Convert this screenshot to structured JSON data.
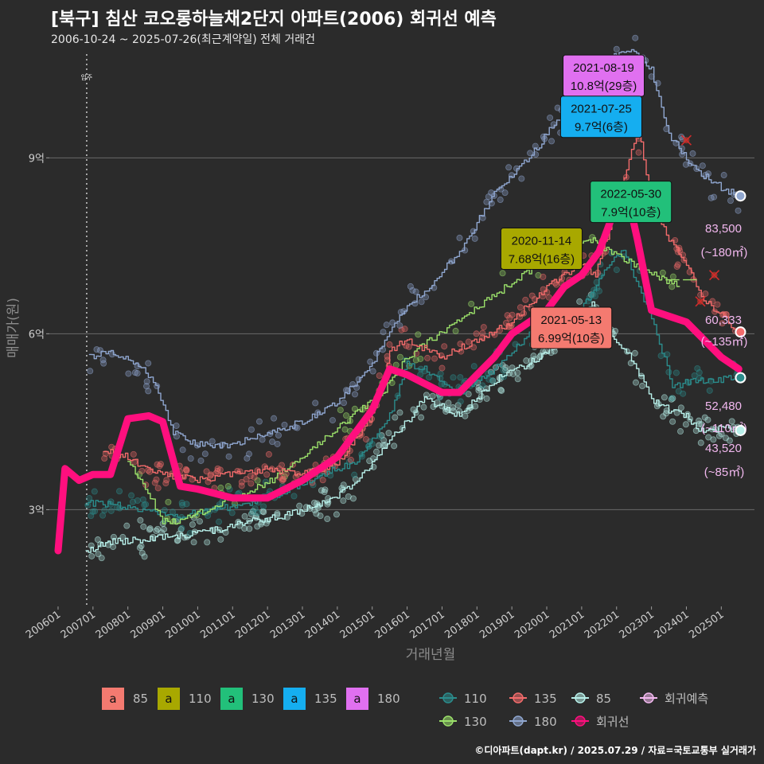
{
  "chart_data": {
    "type": "line",
    "title": "[북구] 침산 코오롱하늘채2단지 아파트(2006) 회귀선 예측",
    "subtitle": "2006-10-24 ~ 2025-07-26(최근계약일) 전체 거래건",
    "caption": "©디아파트(dapt.kr) / 2025.07.29 / 자료=국토교통부 실거래가",
    "xlabel": "거래년월",
    "ylabel": "매매가(원)",
    "xlim": [
      2005.75,
      2025.95
    ],
    "ylim": [
      1.35,
      10.85
    ],
    "y_ticks": [
      {
        "value": 3,
        "label": "3억"
      },
      {
        "value": 6,
        "label": "6억"
      },
      {
        "value": 9,
        "label": "9억"
      }
    ],
    "x_ticks": [
      {
        "value": 2006.0,
        "label": "200601"
      },
      {
        "value": 2007.0,
        "label": "200701"
      },
      {
        "value": 2008.0,
        "label": "200801"
      },
      {
        "value": 2009.0,
        "label": "200901"
      },
      {
        "value": 2010.0,
        "label": "201001"
      },
      {
        "value": 2011.0,
        "label": "201101"
      },
      {
        "value": 2012.0,
        "label": "201201"
      },
      {
        "value": 2013.0,
        "label": "201301"
      },
      {
        "value": 2014.0,
        "label": "201401"
      },
      {
        "value": 2015.0,
        "label": "201501"
      },
      {
        "value": 2016.0,
        "label": "201601"
      },
      {
        "value": 2017.0,
        "label": "201701"
      },
      {
        "value": 2018.0,
        "label": "201801"
      },
      {
        "value": 2019.0,
        "label": "201901"
      },
      {
        "value": 2020.0,
        "label": "202001"
      },
      {
        "value": 2021.0,
        "label": "202101"
      },
      {
        "value": 2022.0,
        "label": "202201"
      },
      {
        "value": 2023.0,
        "label": "202301"
      },
      {
        "value": 2024.0,
        "label": "202401"
      },
      {
        "value": 2025.0,
        "label": "202501"
      }
    ],
    "grid": true,
    "legend_position": "bottom",
    "move_in": {
      "x": 2006.82,
      "label": "입주"
    },
    "series": [
      {
        "name": "85",
        "color": "#b8f0ea",
        "points": [
          [
            2006.8,
            2.3
          ],
          [
            2007.5,
            2.45
          ],
          [
            2008.5,
            2.5
          ],
          [
            2009.5,
            2.55
          ],
          [
            2010.5,
            2.65
          ],
          [
            2011.5,
            2.8
          ],
          [
            2012.5,
            2.9
          ],
          [
            2013.5,
            3.1
          ],
          [
            2014.5,
            3.4
          ],
          [
            2015.5,
            4.2
          ],
          [
            2016.0,
            4.5
          ],
          [
            2016.5,
            4.9
          ],
          [
            2017.5,
            4.6
          ],
          [
            2018.5,
            5.2
          ],
          [
            2019.5,
            5.5
          ],
          [
            2020.5,
            5.9
          ],
          [
            2021.3,
            6.5
          ],
          [
            2021.6,
            6.2
          ],
          [
            2022.0,
            5.9
          ],
          [
            2022.5,
            5.5
          ],
          [
            2023.0,
            4.9
          ],
          [
            2023.5,
            4.7
          ],
          [
            2024.0,
            4.6
          ],
          [
            2024.5,
            4.3
          ],
          [
            2025.0,
            4.4
          ],
          [
            2025.5,
            4.35
          ]
        ]
      },
      {
        "name": "110",
        "color": "#2b8c8c",
        "points": [
          [
            2006.8,
            3.1
          ],
          [
            2007.5,
            3.1
          ],
          [
            2008.5,
            3.0
          ],
          [
            2009.5,
            2.9
          ],
          [
            2010.5,
            3.0
          ],
          [
            2011.5,
            3.1
          ],
          [
            2012.5,
            3.3
          ],
          [
            2013.5,
            3.6
          ],
          [
            2014.5,
            3.8
          ],
          [
            2015.5,
            4.6
          ],
          [
            2016.0,
            5.5
          ],
          [
            2016.5,
            5.4
          ],
          [
            2017.5,
            5.0
          ],
          [
            2018.5,
            5.4
          ],
          [
            2019.5,
            6.0
          ],
          [
            2020.5,
            6.1
          ],
          [
            2021.2,
            6.6
          ],
          [
            2021.8,
            7.2
          ],
          [
            2022.2,
            7.4
          ],
          [
            2023.0,
            6.3
          ],
          [
            2023.6,
            5.1
          ],
          [
            2024.2,
            5.2
          ],
          [
            2025.5,
            5.25
          ]
        ]
      },
      {
        "name": "130",
        "color": "#9be06a",
        "points": [
          [
            2008.0,
            3.85
          ],
          [
            2008.5,
            3.4
          ],
          [
            2009.0,
            2.8
          ],
          [
            2009.5,
            2.8
          ],
          [
            2012.0,
            3.45
          ],
          [
            2015.3,
            5.0
          ],
          [
            2016.0,
            5.6
          ],
          [
            2020.5,
            7.5
          ],
          [
            2021.4,
            7.6
          ],
          [
            2021.5,
            7.5
          ],
          [
            2023.8,
            6.8
          ]
        ]
      },
      {
        "name": "135",
        "color": "#f26b6b",
        "points": [
          [
            2007.3,
            4.0
          ],
          [
            2008.0,
            3.9
          ],
          [
            2008.5,
            3.7
          ],
          [
            2009.0,
            3.6
          ],
          [
            2010.0,
            3.5
          ],
          [
            2011.0,
            3.6
          ],
          [
            2012.0,
            3.7
          ],
          [
            2013.0,
            3.6
          ],
          [
            2014.0,
            3.8
          ],
          [
            2015.0,
            4.6
          ],
          [
            2015.5,
            5.7
          ],
          [
            2016.0,
            5.9
          ],
          [
            2017.0,
            5.6
          ],
          [
            2018.0,
            5.9
          ],
          [
            2019.0,
            6.2
          ],
          [
            2020.0,
            6.8
          ],
          [
            2021.0,
            7.2
          ],
          [
            2021.4,
            6.99
          ],
          [
            2021.6,
            7.4
          ],
          [
            2022.0,
            8.2
          ],
          [
            2022.5,
            9.3
          ],
          [
            2022.7,
            9.3
          ],
          [
            2023.0,
            8.2
          ],
          [
            2023.5,
            7.6
          ],
          [
            2024.0,
            7.2
          ],
          [
            2024.5,
            6.6
          ],
          [
            2025.5,
            6.03
          ]
        ]
      },
      {
        "name": "180",
        "color": "#8fa6cf",
        "points": [
          [
            2006.9,
            5.6
          ],
          [
            2007.3,
            5.7
          ],
          [
            2007.8,
            5.6
          ],
          [
            2008.3,
            5.5
          ],
          [
            2008.8,
            5.1
          ],
          [
            2009.3,
            4.3
          ],
          [
            2010.0,
            4.1
          ],
          [
            2011.0,
            4.1
          ],
          [
            2012.0,
            4.3
          ],
          [
            2013.0,
            4.5
          ],
          [
            2014.0,
            4.8
          ],
          [
            2015.0,
            5.5
          ],
          [
            2016.0,
            6.5
          ],
          [
            2016.5,
            6.7
          ],
          [
            2017.5,
            7.4
          ],
          [
            2018.5,
            8.4
          ],
          [
            2019.5,
            9.0
          ],
          [
            2020.5,
            9.8
          ],
          [
            2021.0,
            10.2
          ],
          [
            2021.6,
            10.6
          ],
          [
            2022.0,
            10.75
          ],
          [
            2022.5,
            10.8
          ],
          [
            2023.0,
            10.5
          ],
          [
            2023.5,
            9.4
          ],
          [
            2024.0,
            9.0
          ],
          [
            2024.5,
            8.7
          ],
          [
            2025.0,
            8.5
          ],
          [
            2025.5,
            8.35
          ]
        ]
      },
      {
        "name": "회귀선",
        "color": "#ff0f7e",
        "points": [
          [
            2006.0,
            2.3
          ],
          [
            2006.2,
            3.7
          ],
          [
            2006.6,
            3.5
          ],
          [
            2007.0,
            3.6
          ],
          [
            2007.5,
            3.6
          ],
          [
            2008.0,
            4.55
          ],
          [
            2008.6,
            4.6
          ],
          [
            2009.0,
            4.5
          ],
          [
            2009.5,
            3.4
          ],
          [
            2010.0,
            3.35
          ],
          [
            2011.0,
            3.2
          ],
          [
            2012.0,
            3.2
          ],
          [
            2013.0,
            3.5
          ],
          [
            2014.0,
            3.9
          ],
          [
            2014.5,
            4.3
          ],
          [
            2015.0,
            4.7
          ],
          [
            2015.5,
            5.4
          ],
          [
            2016.0,
            5.3
          ],
          [
            2016.5,
            5.15
          ],
          [
            2017.0,
            5.0
          ],
          [
            2017.5,
            5.0
          ],
          [
            2018.0,
            5.3
          ],
          [
            2018.5,
            5.6
          ],
          [
            2019.0,
            6.0
          ],
          [
            2019.5,
            6.2
          ],
          [
            2020.0,
            6.4
          ],
          [
            2020.5,
            6.8
          ],
          [
            2021.0,
            7.0
          ],
          [
            2021.5,
            7.4
          ],
          [
            2022.0,
            8.2
          ],
          [
            2022.3,
            8.4
          ],
          [
            2022.6,
            7.6
          ],
          [
            2023.0,
            6.4
          ],
          [
            2023.5,
            6.3
          ],
          [
            2024.0,
            6.2
          ],
          [
            2024.5,
            5.9
          ],
          [
            2025.0,
            5.6
          ],
          [
            2025.5,
            5.4
          ]
        ]
      }
    ],
    "scatter_seed": 20250729,
    "cancelled_marks": [
      [
        2024.0,
        9.3
      ],
      [
        2024.8,
        7.0
      ],
      [
        2024.4,
        6.55
      ]
    ],
    "flat_segments": [
      [
        2023.4,
        2023.8,
        6.92
      ],
      [
        2023.9,
        2024.3,
        6.92
      ]
    ],
    "end_points": [
      {
        "name": "180",
        "x": 2025.55,
        "y": 8.35,
        "color": "#8fa6cf",
        "value": "83,500",
        "area": "(~180㎡)"
      },
      {
        "name": "135",
        "x": 2025.55,
        "y": 6.03,
        "color": "#f26b6b",
        "value": "60,333",
        "area": "(~135㎡)"
      },
      {
        "name": "110",
        "x": 2025.55,
        "y": 5.25,
        "color": "#2b8c8c",
        "value": "52,480",
        "area": "(~110㎡)"
      },
      {
        "name": "85",
        "x": 2025.55,
        "y": 4.35,
        "color": "#b8f0ea",
        "value": "43,520",
        "area": "(~85㎡)"
      }
    ],
    "max_labels": [
      {
        "date": "2021-08-19",
        "value": "10.8억(29층)",
        "x": 2021.63,
        "y": 10.4,
        "color": "#e070f0"
      },
      {
        "date": "2021-07-25",
        "value": "9.7억(6층)",
        "x": 2021.56,
        "y": 9.7,
        "color": "#15aef0"
      },
      {
        "date": "2022-05-30",
        "value": "7.9억(10층)",
        "x": 2022.41,
        "y": 8.25,
        "color": "#22c07a"
      },
      {
        "date": "2020-11-14",
        "value": "7.68억(16층)",
        "x": 2019.85,
        "y": 7.45,
        "color": "#a8a800"
      },
      {
        "date": "2021-05-13",
        "value": "6.99억(10층)",
        "x": 2020.7,
        "y": 6.1,
        "color": "#f47a70"
      }
    ],
    "legend": {
      "fill_items": [
        {
          "key": "a",
          "label": "85",
          "color": "#f47a70"
        },
        {
          "key": "a",
          "label": "110",
          "color": "#a8a800"
        },
        {
          "key": "a",
          "label": "130",
          "color": "#22c07a"
        },
        {
          "key": "a",
          "label": "135",
          "color": "#15aef0"
        },
        {
          "key": "a",
          "label": "180",
          "color": "#e070f0"
        }
      ],
      "line_items": [
        {
          "label": "110",
          "color": "#2b8c8c"
        },
        {
          "label": "135",
          "color": "#f26b6b"
        },
        {
          "label": "85",
          "color": "#b8f0ea"
        },
        {
          "label": "회귀예측",
          "color": "#f2b8ef"
        },
        {
          "label": "130",
          "color": "#9be06a"
        },
        {
          "label": "180",
          "color": "#8fa6cf"
        },
        {
          "label": "회귀선",
          "color": "#ff0f7e"
        }
      ]
    }
  }
}
